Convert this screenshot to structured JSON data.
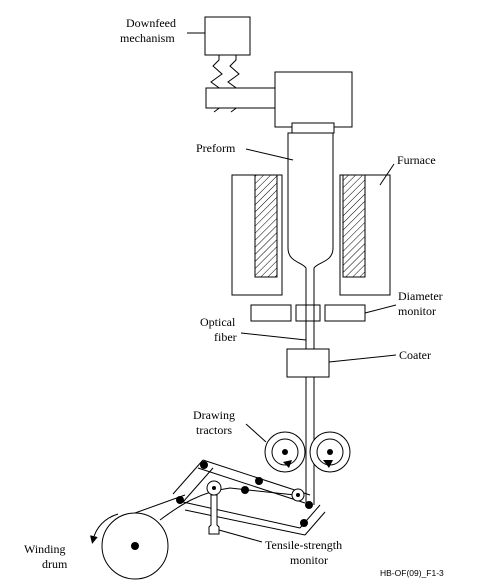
{
  "labels": {
    "downfeed_1": "Downfeed",
    "downfeed_2": "mechanism",
    "preform": "Preform",
    "furnace": "Furnace",
    "diameter_1": "Diameter",
    "diameter_2": "monitor",
    "optical_1": "Optical",
    "optical_2": "fiber",
    "coater": "Coater",
    "drawing_1": "Drawing",
    "drawing_2": "tractors",
    "winding_1": "Winding",
    "winding_2": "drum",
    "tensile_1": "Tensile-strength",
    "tensile_2": "monitor"
  },
  "figure_id": "HB-OF(09)_F1-3"
}
